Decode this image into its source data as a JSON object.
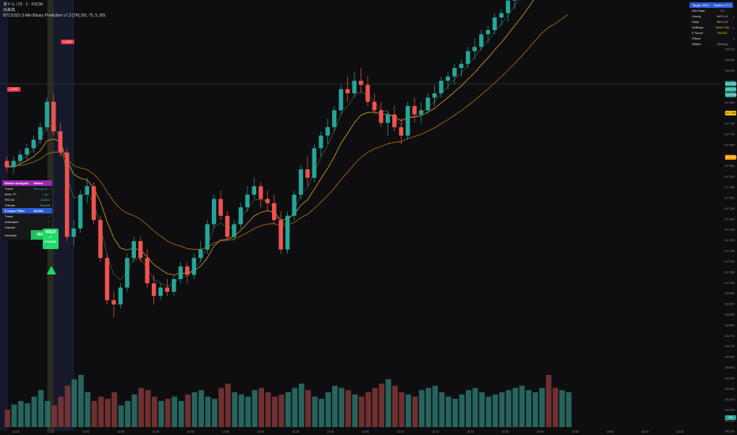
{
  "header": {
    "line1": "米ドル / 円 · 1 · FXCM",
    "line2": "出来高",
    "line3": "BTC/USD 3-Min Binary Prediction v7.3 [TR] (50, 75, 5, 80)"
  },
  "market_panel": {
    "title_left": "Market Analysis",
    "title_right": "Status",
    "rows": [
      {
        "label": "Trend",
        "value": "Strong Up ↑",
        "color": "#26a69a"
      },
      {
        "label": "5min TF",
        "value": "Up ↑",
        "color": "#26a69a"
      },
      {
        "label": "RSI 63",
        "value": "Bullish",
        "color": "#26a69a"
      },
      {
        "label": "Volume",
        "value": "Normal",
        "color": "#9e9e9e"
      }
    ],
    "filter_title": "3-Layer Filter",
    "filter_score": "50/100",
    "filter_rows": [
      {
        "label": "Trend",
        "value": "✓",
        "color": "#26a69a"
      },
      {
        "label": "Indicators",
        "value": "✓",
        "color": "#26a69a"
      },
      {
        "label": "Volume",
        "value": "✓",
        "color": "#26a69a"
      }
    ],
    "decision_label": "Decision",
    "decision_value": "HIGH"
  },
  "signal_badge": {
    "line1": "HIGH",
    "line2": "✓",
    "line3": "FILTER"
  },
  "scoreboard": {
    "title": "Target: 80%",
    "subtitle": "System v7.3",
    "rows": [
      {
        "label": "Win Rate",
        "value": "0%",
        "color": "#ef5350"
      },
      {
        "label": "Hourly",
        "value": "W:0 L:0",
        "color": "#dddddd"
      },
      {
        "label": "Daily",
        "value": "W:0 L:0",
        "color": "#dddddd"
      },
      {
        "label": "Settings",
        "value": "Strict >50",
        "color": "#ffc107"
      },
      {
        "label": "F Score",
        "value": "50/100",
        "color": "#ffc107"
      },
      {
        "label": "Filters",
        "value": "",
        "color": "#dddddd"
      },
      {
        "label": "Status",
        "value": "Waiting",
        "color": "#9e9e9e"
      }
    ]
  },
  "tags": {
    "loss1": "LOSS",
    "loss2": "LOSS"
  },
  "price_axis": {
    "ticks": [
      "148.250",
      "148.200",
      "148.150",
      "148.100",
      "148.050",
      "148.000",
      "147.950",
      "147.900",
      "147.850",
      "147.800",
      "147.750",
      "147.700",
      "147.650",
      "147.600",
      "147.550",
      "147.500",
      "147.450",
      "147.400",
      "147.350",
      "147.300",
      "147.250",
      "147.200",
      "147.150",
      "147.100",
      "147.050",
      "147.000",
      "146.950",
      "146.900",
      "146.850",
      "146.800",
      "146.750",
      "146.700",
      "146.650",
      "146.600",
      "146.550",
      "146.500",
      "146.450",
      "146.400",
      "146.350",
      "146.300"
    ],
    "labels": [
      {
        "text": "148.083",
        "color": "#26a69a"
      },
      {
        "text": "148.074",
        "color": "#26a69a"
      },
      {
        "text": "148.068",
        "color": "#26a69a"
      },
      {
        "text": "147.900",
        "color": "#ffc107"
      },
      {
        "text": "147.610",
        "color": "#ff9800"
      },
      {
        "text": "2M",
        "color": "#26a69a"
      }
    ]
  },
  "time_axis": [
    "13:25",
    "13:40",
    "13:55",
    "14:05",
    "14:20",
    "14:35",
    "14:50",
    "14:05",
    "14:25",
    "14:40",
    "14:55",
    "15:10",
    "15:15",
    "15:20",
    "15:30",
    "15:40",
    "15:50",
    "16:05",
    "16:20",
    "16:35"
  ],
  "chart_data": {
    "type": "candlestick",
    "candles": [
      [
        147.58,
        147.6,
        147.53,
        147.55
      ],
      [
        147.55,
        147.6,
        147.52,
        147.58
      ],
      [
        147.58,
        147.63,
        147.56,
        147.61
      ],
      [
        147.61,
        147.66,
        147.58,
        147.64
      ],
      [
        147.64,
        147.7,
        147.62,
        147.68
      ],
      [
        147.68,
        147.76,
        147.66,
        147.74
      ],
      [
        147.74,
        147.88,
        147.72,
        147.86
      ],
      [
        147.86,
        147.9,
        147.7,
        147.72
      ],
      [
        147.72,
        147.76,
        147.6,
        147.62
      ],
      [
        147.62,
        147.64,
        147.2,
        147.22
      ],
      [
        147.22,
        147.3,
        147.18,
        147.26
      ],
      [
        147.26,
        147.44,
        147.24,
        147.42
      ],
      [
        147.42,
        147.5,
        147.38,
        147.46
      ],
      [
        147.46,
        147.48,
        147.28,
        147.3
      ],
      [
        147.3,
        147.32,
        147.1,
        147.12
      ],
      [
        147.12,
        147.14,
        146.9,
        146.92
      ],
      [
        146.92,
        146.96,
        146.84,
        146.9
      ],
      [
        146.9,
        147.0,
        146.88,
        146.98
      ],
      [
        146.98,
        147.14,
        146.96,
        147.12
      ],
      [
        147.12,
        147.22,
        147.1,
        147.2
      ],
      [
        147.2,
        147.22,
        147.1,
        147.12
      ],
      [
        147.12,
        147.16,
        146.98,
        147.0
      ],
      [
        147.0,
        147.04,
        146.9,
        146.94
      ],
      [
        146.94,
        147.0,
        146.92,
        146.98
      ],
      [
        146.98,
        147.02,
        146.94,
        146.96
      ],
      [
        146.96,
        147.04,
        146.94,
        147.02
      ],
      [
        147.02,
        147.1,
        147.0,
        147.08
      ],
      [
        147.08,
        147.1,
        147.0,
        147.04
      ],
      [
        147.04,
        147.14,
        147.02,
        147.12
      ],
      [
        147.12,
        147.2,
        147.1,
        147.16
      ],
      [
        147.16,
        147.3,
        147.14,
        147.28
      ],
      [
        147.28,
        147.42,
        147.26,
        147.4
      ],
      [
        147.4,
        147.44,
        147.3,
        147.32
      ],
      [
        147.32,
        147.34,
        147.2,
        147.22
      ],
      [
        147.22,
        147.3,
        147.2,
        147.28
      ],
      [
        147.28,
        147.38,
        147.26,
        147.36
      ],
      [
        147.36,
        147.46,
        147.34,
        147.42
      ],
      [
        147.42,
        147.5,
        147.4,
        147.46
      ],
      [
        147.46,
        147.48,
        147.36,
        147.4
      ],
      [
        147.4,
        147.44,
        147.34,
        147.38
      ],
      [
        147.38,
        147.42,
        147.28,
        147.3
      ],
      [
        147.3,
        147.34,
        147.14,
        147.16
      ],
      [
        147.16,
        147.34,
        147.14,
        147.32
      ],
      [
        147.32,
        147.44,
        147.3,
        147.42
      ],
      [
        147.42,
        147.56,
        147.4,
        147.54
      ],
      [
        147.54,
        147.6,
        147.46,
        147.5
      ],
      [
        147.5,
        147.66,
        147.48,
        147.64
      ],
      [
        147.64,
        147.72,
        147.6,
        147.7
      ],
      [
        147.7,
        147.78,
        147.66,
        147.74
      ],
      [
        147.74,
        147.84,
        147.72,
        147.82
      ],
      [
        147.82,
        147.94,
        147.8,
        147.92
      ],
      [
        147.92,
        147.98,
        147.86,
        147.9
      ],
      [
        147.9,
        148.0,
        147.88,
        147.96
      ],
      [
        147.96,
        148.02,
        147.9,
        147.94
      ],
      [
        147.94,
        147.98,
        147.84,
        147.86
      ],
      [
        147.86,
        147.9,
        147.8,
        147.82
      ],
      [
        147.82,
        147.86,
        147.74,
        147.76
      ],
      [
        147.76,
        147.82,
        147.7,
        147.8
      ],
      [
        147.8,
        147.84,
        147.72,
        147.74
      ],
      [
        147.74,
        147.78,
        147.66,
        147.7
      ],
      [
        147.7,
        147.86,
        147.68,
        147.84
      ],
      [
        147.84,
        147.88,
        147.76,
        147.8
      ],
      [
        147.8,
        147.86,
        147.76,
        147.82
      ],
      [
        147.82,
        147.9,
        147.8,
        147.88
      ],
      [
        147.88,
        147.94,
        147.84,
        147.9
      ],
      [
        147.9,
        147.98,
        147.88,
        147.96
      ],
      [
        147.96,
        148.0,
        147.92,
        147.98
      ],
      [
        147.98,
        148.04,
        147.94,
        148.02
      ],
      [
        148.02,
        148.06,
        147.98,
        148.04
      ],
      [
        148.04,
        148.12,
        148.02,
        148.1
      ],
      [
        148.1,
        148.16,
        148.06,
        148.12
      ],
      [
        148.12,
        148.2,
        148.1,
        148.18
      ],
      [
        148.18,
        148.22,
        148.14,
        148.2
      ],
      [
        148.2,
        148.28,
        148.18,
        148.26
      ],
      [
        148.26,
        148.3,
        148.22,
        148.28
      ],
      [
        148.28,
        148.36,
        148.24,
        148.34
      ],
      [
        148.34,
        148.4,
        148.3,
        148.38
      ],
      [
        148.38,
        148.44,
        148.34,
        148.42
      ],
      [
        148.42,
        148.5,
        148.4,
        148.48
      ],
      [
        148.48,
        148.56,
        148.46,
        148.54
      ],
      [
        148.54,
        148.58,
        148.5,
        148.56
      ],
      [
        148.56,
        148.6,
        148.48,
        148.5
      ],
      [
        148.5,
        148.52,
        148.4,
        148.42
      ],
      [
        148.42,
        148.5,
        148.4,
        148.48
      ],
      [
        148.48,
        148.54,
        148.46,
        148.52
      ]
    ],
    "volumes": [
      40,
      52,
      60,
      55,
      70,
      85,
      60,
      50,
      70,
      95,
      110,
      120,
      80,
      60,
      70,
      65,
      80,
      50,
      60,
      75,
      90,
      85,
      70,
      60,
      65,
      70,
      60,
      75,
      80,
      85,
      70,
      65,
      90,
      100,
      80,
      75,
      70,
      85,
      90,
      80,
      70,
      75,
      80,
      90,
      100,
      85,
      70,
      65,
      80,
      95,
      90,
      85,
      75,
      70,
      80,
      90,
      100,
      110,
      95,
      80,
      75,
      70,
      85,
      90,
      95,
      80,
      70,
      65,
      75,
      85,
      90,
      80,
      70,
      75,
      80,
      85,
      90,
      95,
      85,
      80,
      90,
      120,
      90,
      85,
      80
    ]
  }
}
